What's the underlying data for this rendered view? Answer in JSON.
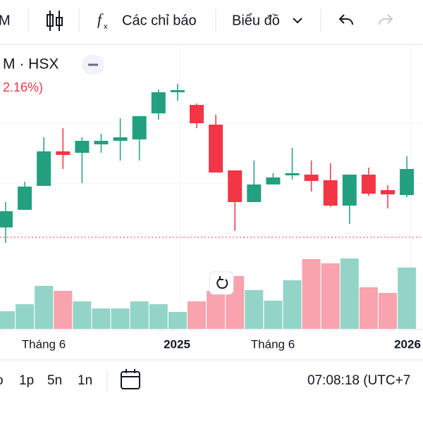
{
  "toolbar": {
    "symbol": "M",
    "indicators": "Các chỉ báo",
    "chart_type": "Biểu đồ"
  },
  "legend": {
    "symbol": "M · HSX",
    "change": "2.16%)"
  },
  "chart_data": {
    "type": "candlestick",
    "open": [
      27,
      52,
      86,
      135,
      133,
      145,
      150,
      152,
      189,
      219,
      201,
      173,
      108,
      63,
      88,
      101,
      102,
      94,
      58,
      102,
      80,
      73
    ],
    "high": [
      63,
      92,
      155,
      168,
      155,
      160,
      182,
      185,
      223,
      231,
      203,
      187,
      108,
      122,
      104,
      140,
      122,
      118,
      102,
      112,
      87,
      128
    ],
    "low": [
      5,
      52,
      86,
      110,
      90,
      133,
      122,
      122,
      180,
      207,
      168,
      105,
      22,
      63,
      88,
      95,
      78,
      56,
      32,
      72,
      54,
      70
    ],
    "close": [
      50,
      85,
      135,
      130,
      150,
      150,
      155,
      185,
      219,
      222,
      175,
      105,
      63,
      88,
      98,
      104,
      93,
      58,
      102,
      75,
      74,
      110
    ],
    "volume": [
      25,
      35,
      61,
      54,
      39,
      29,
      29,
      39,
      35,
      24,
      39,
      54,
      75,
      55,
      40,
      69,
      99,
      93,
      100,
      59,
      51,
      87
    ],
    "up_color": "#22a07f",
    "down_color": "#f23645",
    "volume_up_color": "#92d5c8",
    "volume_down_color": "#f8a3ad",
    "ylim": [
      0,
      250
    ],
    "vlim": [
      0,
      120
    ],
    "xtick_labels": [
      "Tháng 6",
      "2025",
      "Tháng 6",
      "2026"
    ]
  },
  "bottom_bar": {
    "ranges": [
      "o",
      "1p",
      "5n",
      "1n"
    ],
    "clock": "07:08:18 (UTC+7"
  }
}
